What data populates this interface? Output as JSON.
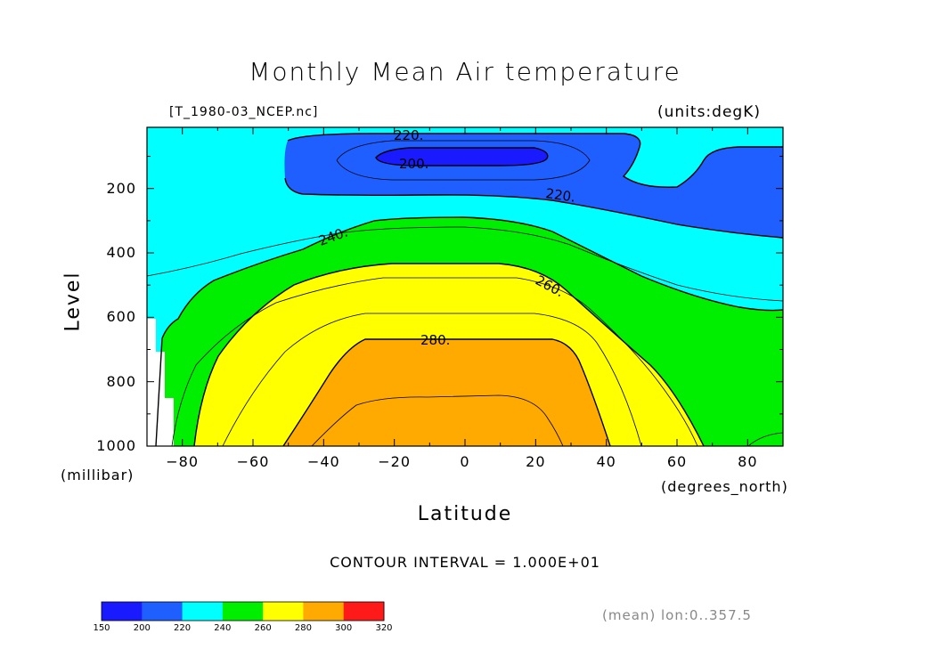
{
  "chart_data": {
    "type": "contour",
    "title": "Monthly Mean Air temperature",
    "source_file": "[T_1980-03_NCEP.nc]",
    "units_label": "(units:degK)",
    "xlabel": "Latitude",
    "xunits": "(degrees_north)",
    "ylabel": "Level",
    "yunits": "(millibar)",
    "xlim": [
      -90,
      90
    ],
    "ylim": [
      1000,
      10
    ],
    "x_ticks": [
      -80,
      -60,
      -40,
      -20,
      0,
      20,
      40,
      60,
      80
    ],
    "y_ticks": [
      200,
      400,
      600,
      800,
      1000
    ],
    "contour_labels": [
      "220.",
      "200.",
      "220.",
      "240.",
      "260.",
      "280."
    ],
    "contour_interval_text": "CONTOUR INTERVAL = 1.000E+01",
    "mean_text": "(mean) lon:0..357.5",
    "colorbar": {
      "levels": [
        150,
        200,
        220,
        240,
        260,
        280,
        300,
        320
      ],
      "colors": [
        "#1a1aff",
        "#1f5fff",
        "#00ffff",
        "#00ee00",
        "#ffff00",
        "#ffaa00",
        "#ff1a1a"
      ]
    },
    "fill_colors": {
      "band_200_220": "#1f5fff",
      "band_lt_200": "#1a1aff",
      "band_220_240": "#00ffff",
      "band_240_260": "#00ee00",
      "band_260_280": "#ffff00",
      "band_280_300": "#ffaa00"
    }
  }
}
